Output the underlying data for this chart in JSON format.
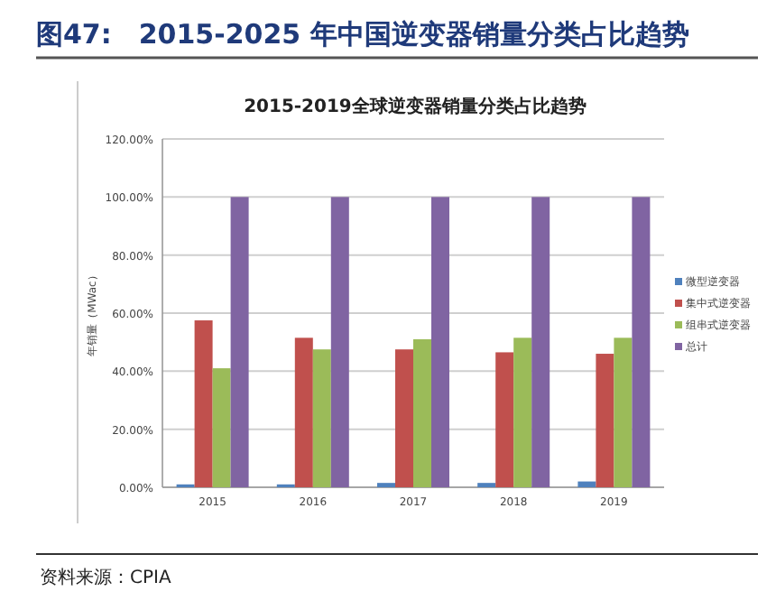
{
  "chart_data": {
    "type": "bar",
    "title": "图47:　2015-2025 年中国逆变器销量分类占比趋势",
    "subtitle": "2015-2019全球逆变器销量分类占比趋势",
    "ylabel": "年销量（MWac）",
    "categories": [
      "2015",
      "2016",
      "2017",
      "2018",
      "2019"
    ],
    "series": [
      {
        "name": "微型逆变器",
        "color": "#4f81bd",
        "values": [
          1,
          1,
          1.5,
          1.5,
          2
        ]
      },
      {
        "name": "集中式逆变器",
        "color": "#c0504d",
        "values": [
          57.5,
          51.5,
          47.5,
          46.5,
          46
        ]
      },
      {
        "name": "组串式逆变器",
        "color": "#9bbb59",
        "values": [
          41,
          47.5,
          51,
          51.5,
          51.5
        ]
      },
      {
        "name": "总计",
        "color": "#8064a2",
        "values": [
          100,
          100,
          100,
          100,
          100
        ]
      }
    ],
    "ylim": [
      0,
      120
    ],
    "yticks": [
      {
        "value": 0,
        "label": "0.00%"
      },
      {
        "value": 20,
        "label": "20.00%"
      },
      {
        "value": 40,
        "label": "40.00%"
      },
      {
        "value": 60,
        "label": "60.00%"
      },
      {
        "value": 80,
        "label": "80.00%"
      },
      {
        "value": 100,
        "label": "100.00%"
      },
      {
        "value": 120,
        "label": "120.00%"
      }
    ],
    "grid": "y",
    "legend": "right",
    "annotations": [
      "资料来源：CPIA"
    ]
  }
}
